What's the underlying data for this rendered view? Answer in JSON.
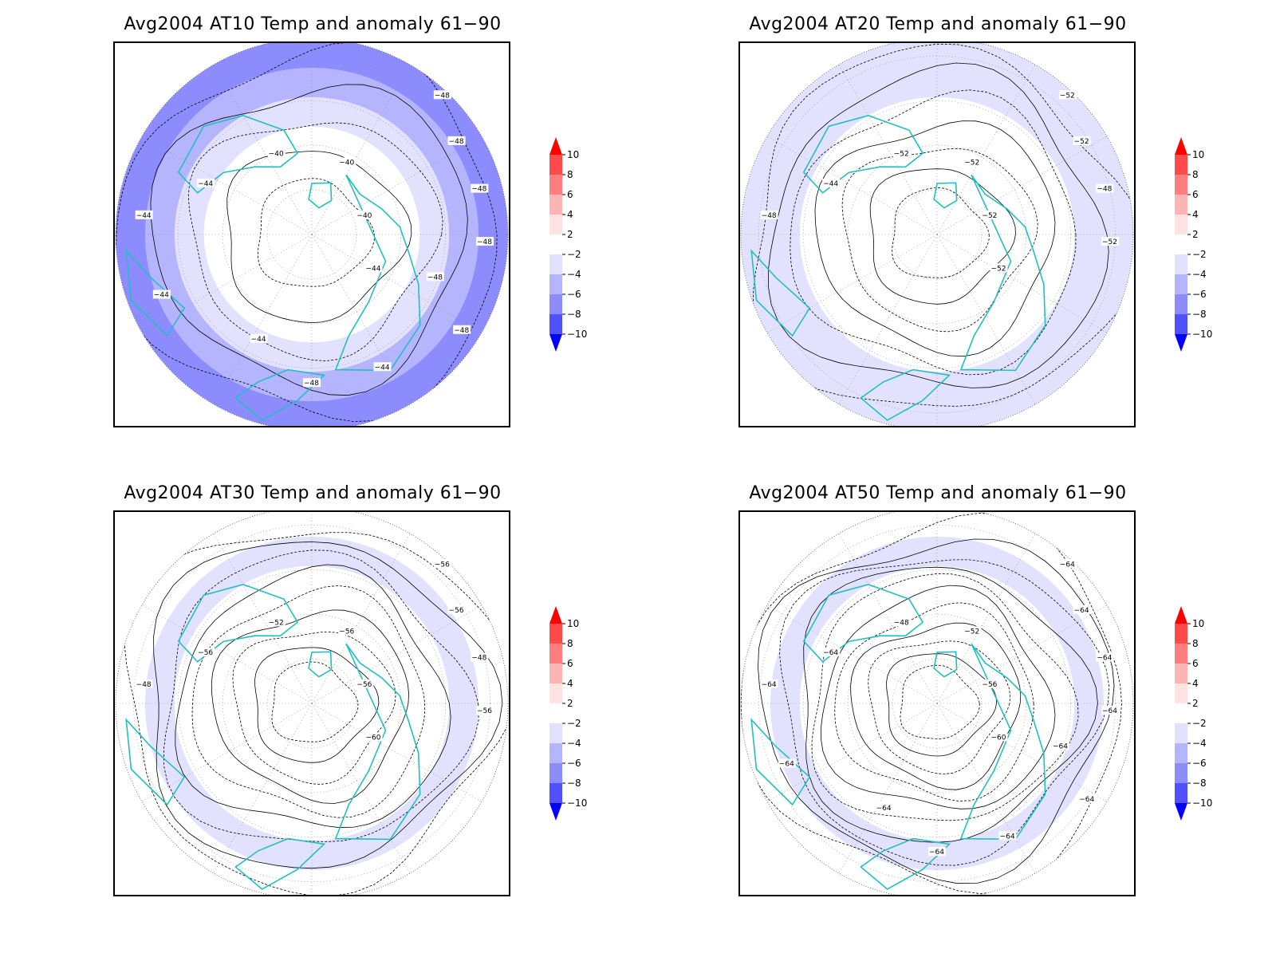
{
  "colorscale": {
    "levels": [
      "10",
      "8",
      "6",
      "4",
      "2",
      "−2",
      "−4",
      "−6",
      "−8",
      "−10"
    ],
    "colors": {
      "red_10": "#ff0000",
      "red_8": "#ff4a4a",
      "red_6": "#ff7f7f",
      "red_4": "#ffb4b4",
      "red_2": "#ffe2e2",
      "white": "#ffffff",
      "blue_2": "#e2e2ff",
      "blue_4": "#b4b4ff",
      "blue_6": "#8c8cff",
      "blue_8": "#5050ff",
      "blue_10": "#0000ff"
    }
  },
  "coastline_color": "#20c0c0",
  "panels": [
    {
      "title": "Avg2004 AT10 Temp and anomaly 61−90",
      "ring_colors": [
        "#8c8cff",
        "#b4b4ff",
        "#e2e2ff",
        "#ffffff",
        "#ffffff"
      ],
      "contour_labels": [
        "−48",
        "−48",
        "−48",
        "−48",
        "−44",
        "−44",
        "−40",
        "−40",
        "−40",
        "−44",
        "−48",
        "−44",
        "−44",
        "−48",
        "−44",
        "−48"
      ]
    },
    {
      "title": "Avg2004 AT20 Temp and anomaly 61−90",
      "ring_colors": [
        "#e2e2ff",
        "#e2e2ff",
        "#ffffff",
        "#ffffff",
        "#ffffff"
      ],
      "contour_labels": [
        "−52",
        "−52",
        "−48",
        "−52",
        "−44",
        "−48",
        "−52",
        "−52",
        "−52",
        "−52"
      ]
    },
    {
      "title": "Avg2004 AT30 Temp and anomaly 61−90",
      "ring_colors": [
        "#ffffff",
        "#e2e2ff",
        "#ffffff",
        "#ffffff",
        "#ffffff"
      ],
      "contour_labels": [
        "−56",
        "−56",
        "−48",
        "−56",
        "−56",
        "−48",
        "−52",
        "−56",
        "−56",
        "−60"
      ]
    },
    {
      "title": "Avg2004 AT50 Temp and anomaly 61−90",
      "ring_colors": [
        "#ffffff",
        "#e2e2ff",
        "#ffffff",
        "#ffffff",
        "#ffffff"
      ],
      "contour_labels": [
        "−64",
        "−64",
        "−64",
        "−64",
        "−64",
        "−64",
        "−48",
        "−52",
        "−56",
        "−60",
        "−64",
        "−64",
        "−64",
        "−64",
        "−64",
        "−64"
      ]
    }
  ]
}
